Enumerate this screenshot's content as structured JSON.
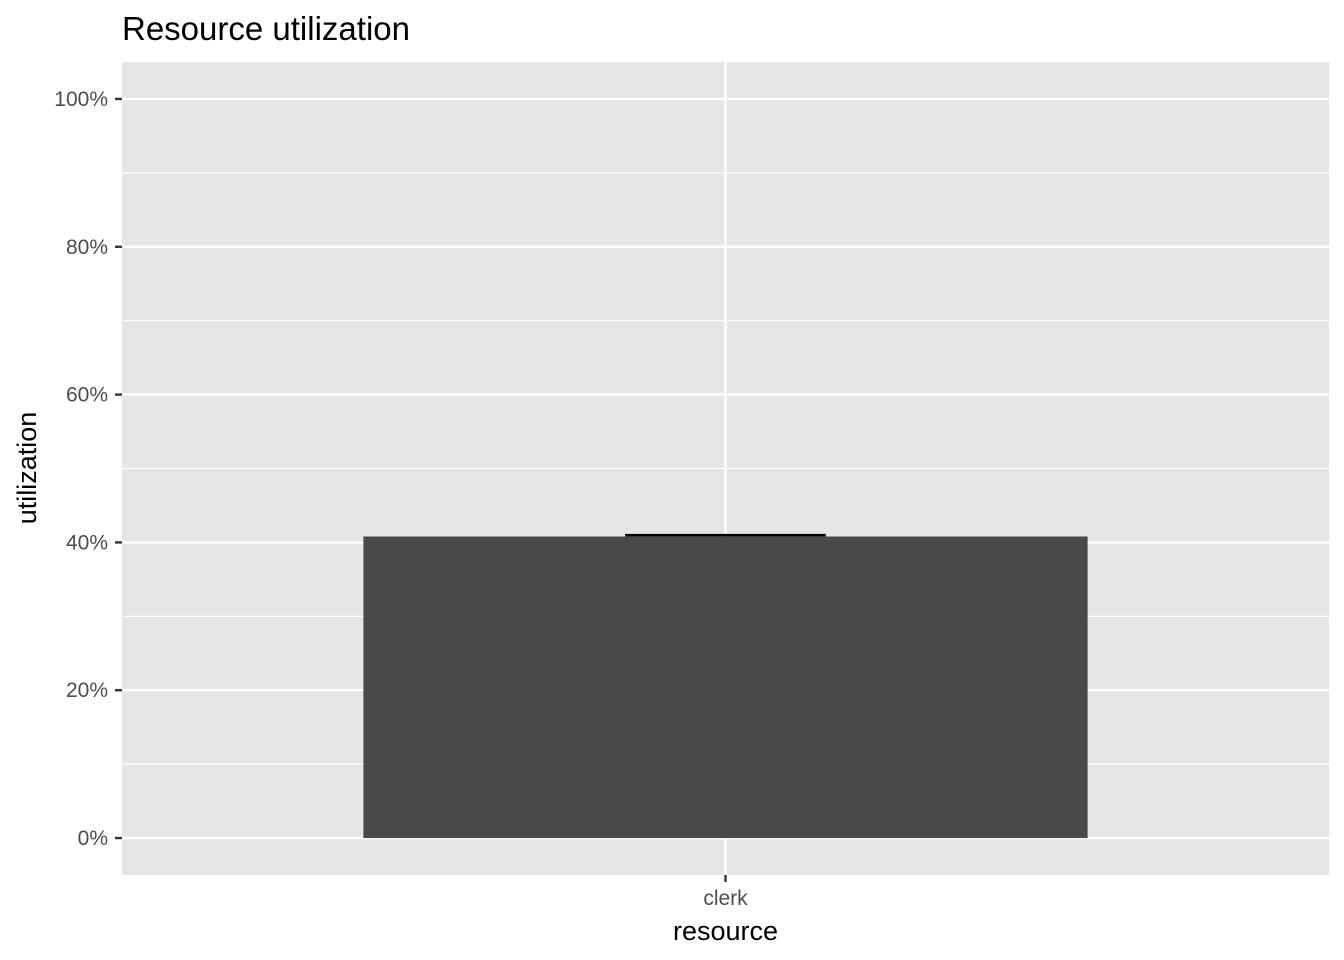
{
  "chart_data": {
    "type": "bar",
    "title": "Resource utilization",
    "xlabel": "resource",
    "ylabel": "utilization",
    "categories": [
      "clerk"
    ],
    "values": [
      0.408
    ],
    "errorbar": [
      {
        "low": 0.408,
        "high": 0.41
      }
    ],
    "ylim": [
      -0.05,
      1.05
    ],
    "yticks": [
      0,
      0.2,
      0.4,
      0.6,
      0.8,
      1.0
    ],
    "ytick_labels": [
      "0%",
      "20%",
      "40%",
      "60%",
      "80%",
      "100%"
    ],
    "grid": true,
    "colors": {
      "panel": "#e5e5e5",
      "grid": "#ffffff",
      "bar": "#494949",
      "errorbar": "#000000",
      "tick": "#333333"
    }
  }
}
